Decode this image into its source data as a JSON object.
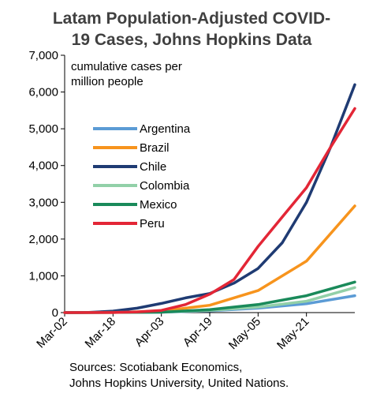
{
  "chart_data": {
    "type": "line",
    "title": [
      "Latam Population-Adjusted COVID-",
      "19 Cases, Johns Hopkins Data"
    ],
    "ylabel": [
      "cumulative cases per",
      "million people"
    ],
    "xlabel": "",
    "ylim": [
      0,
      7000
    ],
    "yticks": [
      0,
      1000,
      2000,
      3000,
      4000,
      5000,
      6000,
      7000
    ],
    "ytick_labels": [
      "0",
      "1,000",
      "2,000",
      "3,000",
      "4,000",
      "5,000",
      "6,000",
      "7,000"
    ],
    "xticks": [
      "2020-03-02",
      "2020-03-18",
      "2020-04-03",
      "2020-04-19",
      "2020-05-05",
      "2020-05-21"
    ],
    "xtick_labels": [
      "Mar-02",
      "Mar-18",
      "Apr-03",
      "Apr-19",
      "May-05",
      "May-21"
    ],
    "xlim": [
      "2020-03-02",
      "2020-06-06"
    ],
    "legend_position": "left",
    "series": [
      {
        "name": "Argentina",
        "color": "#5b9bd5",
        "points": [
          [
            "2020-03-02",
            0
          ],
          [
            "2020-04-03",
            10
          ],
          [
            "2020-04-19",
            50
          ],
          [
            "2020-05-05",
            120
          ],
          [
            "2020-05-21",
            240
          ],
          [
            "2020-06-06",
            460
          ]
        ]
      },
      {
        "name": "Brazil",
        "color": "#f7941d",
        "points": [
          [
            "2020-03-02",
            0
          ],
          [
            "2020-03-18",
            2
          ],
          [
            "2020-04-03",
            40
          ],
          [
            "2020-04-19",
            200
          ],
          [
            "2020-05-05",
            600
          ],
          [
            "2020-05-21",
            1400
          ],
          [
            "2020-06-06",
            2900
          ]
        ]
      },
      {
        "name": "Chile",
        "color": "#1f3b73",
        "points": [
          [
            "2020-03-02",
            0
          ],
          [
            "2020-03-10",
            5
          ],
          [
            "2020-03-18",
            40
          ],
          [
            "2020-03-26",
            120
          ],
          [
            "2020-04-03",
            250
          ],
          [
            "2020-04-11",
            400
          ],
          [
            "2020-04-19",
            520
          ],
          [
            "2020-04-27",
            800
          ],
          [
            "2020-05-05",
            1200
          ],
          [
            "2020-05-13",
            1900
          ],
          [
            "2020-05-21",
            3000
          ],
          [
            "2020-05-29",
            4500
          ],
          [
            "2020-06-06",
            6200
          ]
        ]
      },
      {
        "name": "Colombia",
        "color": "#92d0a8",
        "points": [
          [
            "2020-03-02",
            0
          ],
          [
            "2020-04-03",
            15
          ],
          [
            "2020-04-19",
            60
          ],
          [
            "2020-05-05",
            150
          ],
          [
            "2020-05-21",
            310
          ],
          [
            "2020-06-06",
            680
          ]
        ]
      },
      {
        "name": "Mexico",
        "color": "#1a8a5a",
        "points": [
          [
            "2020-03-02",
            0
          ],
          [
            "2020-04-03",
            10
          ],
          [
            "2020-04-19",
            80
          ],
          [
            "2020-05-05",
            220
          ],
          [
            "2020-05-21",
            460
          ],
          [
            "2020-06-06",
            830
          ]
        ]
      },
      {
        "name": "Peru",
        "color": "#e32636",
        "points": [
          [
            "2020-03-02",
            0
          ],
          [
            "2020-03-18",
            2
          ],
          [
            "2020-03-26",
            20
          ],
          [
            "2020-04-03",
            60
          ],
          [
            "2020-04-11",
            220
          ],
          [
            "2020-04-19",
            500
          ],
          [
            "2020-04-27",
            900
          ],
          [
            "2020-05-05",
            1800
          ],
          [
            "2020-05-13",
            2600
          ],
          [
            "2020-05-21",
            3400
          ],
          [
            "2020-05-29",
            4500
          ],
          [
            "2020-06-06",
            5550
          ]
        ]
      }
    ]
  },
  "footer": {
    "source_line1": "Sources: Scotiabank Economics,",
    "source_line2": "Johns Hopkins University, United Nations."
  }
}
